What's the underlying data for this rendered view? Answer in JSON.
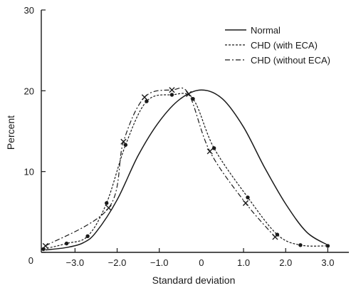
{
  "chart_data": {
    "type": "line",
    "xlabel": "Standard deviation",
    "ylabel": "Percent",
    "xlim": [
      -3.8,
      3.5
    ],
    "ylim": [
      0,
      30
    ],
    "x_ticks": [
      -3.0,
      -2.0,
      -1.0,
      0,
      1.0,
      2.0,
      3.0
    ],
    "x_tick_labels": [
      "−3.0",
      "−2.0",
      "−1.0",
      "0",
      "1.0",
      "2.0",
      "3.0"
    ],
    "y_ticks": [
      0,
      10,
      20,
      30
    ],
    "y_tick_labels": [
      "0",
      "10",
      "20",
      "30"
    ],
    "legend_position": "top-right",
    "series": [
      {
        "name": "Normal",
        "style": "solid",
        "marker": "none",
        "x": [
          -3.7,
          -3.2,
          -2.8,
          -2.5,
          -2.0,
          -1.5,
          -1.0,
          -0.5,
          0.0,
          0.5,
          1.0,
          1.5,
          2.0,
          2.5,
          3.0
        ],
        "y": [
          0.3,
          0.6,
          1.2,
          2.5,
          6.5,
          12.0,
          16.2,
          19.0,
          20.1,
          19.0,
          15.5,
          10.5,
          6.0,
          2.5,
          0.9
        ]
      },
      {
        "name": "CHD (with ECA)",
        "style": "dashed",
        "marker": "dot",
        "x": [
          -3.75,
          -3.2,
          -2.7,
          -2.25,
          -1.8,
          -1.3,
          -0.7,
          -0.2,
          0.3,
          1.1,
          1.8,
          2.35,
          3.0
        ],
        "y": [
          0.4,
          1.1,
          2.0,
          6.1,
          13.3,
          18.7,
          19.5,
          19.0,
          12.9,
          6.8,
          2.2,
          0.9,
          0.8
        ]
      },
      {
        "name": "CHD (without ECA)",
        "style": "dashdot",
        "marker": "x",
        "x": [
          -3.7,
          -2.2,
          -1.85,
          -1.35,
          -0.7,
          -0.3,
          0.2,
          1.05,
          1.75
        ],
        "y": [
          0.8,
          5.5,
          13.7,
          19.2,
          20.1,
          19.6,
          12.5,
          6.1,
          1.9
        ]
      }
    ]
  }
}
